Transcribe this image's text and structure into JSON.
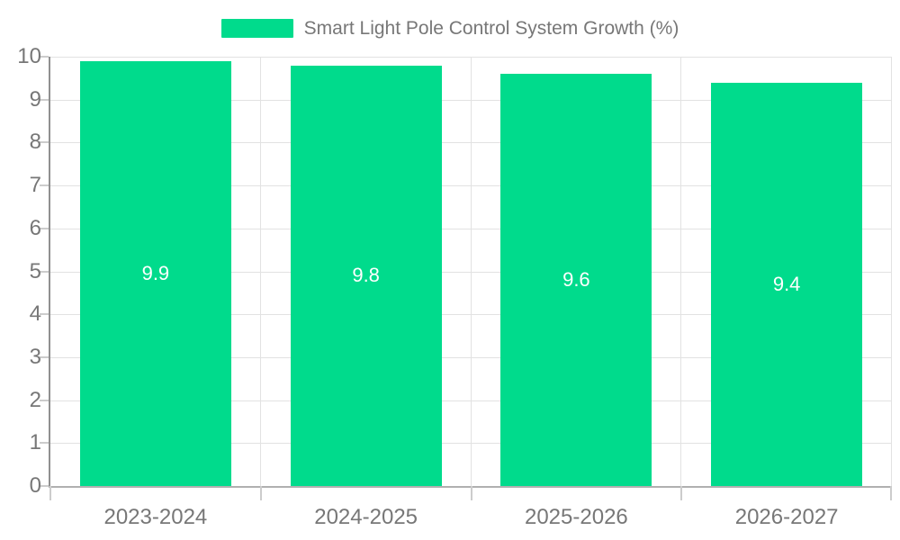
{
  "chart_data": {
    "type": "bar",
    "title": "Smart Light Pole Control System Growth (%)",
    "legend": {
      "label": "Smart Light Pole Control System Growth (%)",
      "position": "top"
    },
    "categories": [
      "2023-2024",
      "2024-2025",
      "2025-2026",
      "2026-2027"
    ],
    "values": [
      9.9,
      9.8,
      9.6,
      9.4
    ],
    "data_labels": [
      "9.9",
      "9.8",
      "9.6",
      "9.4"
    ],
    "xlabel": "",
    "ylabel": "",
    "ylim": [
      0,
      10
    ],
    "yticks": [
      0,
      1,
      2,
      3,
      4,
      5,
      6,
      7,
      8,
      9,
      10
    ],
    "grid": true,
    "colors": {
      "bar": "#00DB8C",
      "bar_label": "#ffffff",
      "axis_text": "#777777",
      "gridline": "#e2e2e2",
      "y_axis_line": "#909090",
      "x_axis_line": "#b0b0b0",
      "tick": "#cccccc"
    }
  }
}
